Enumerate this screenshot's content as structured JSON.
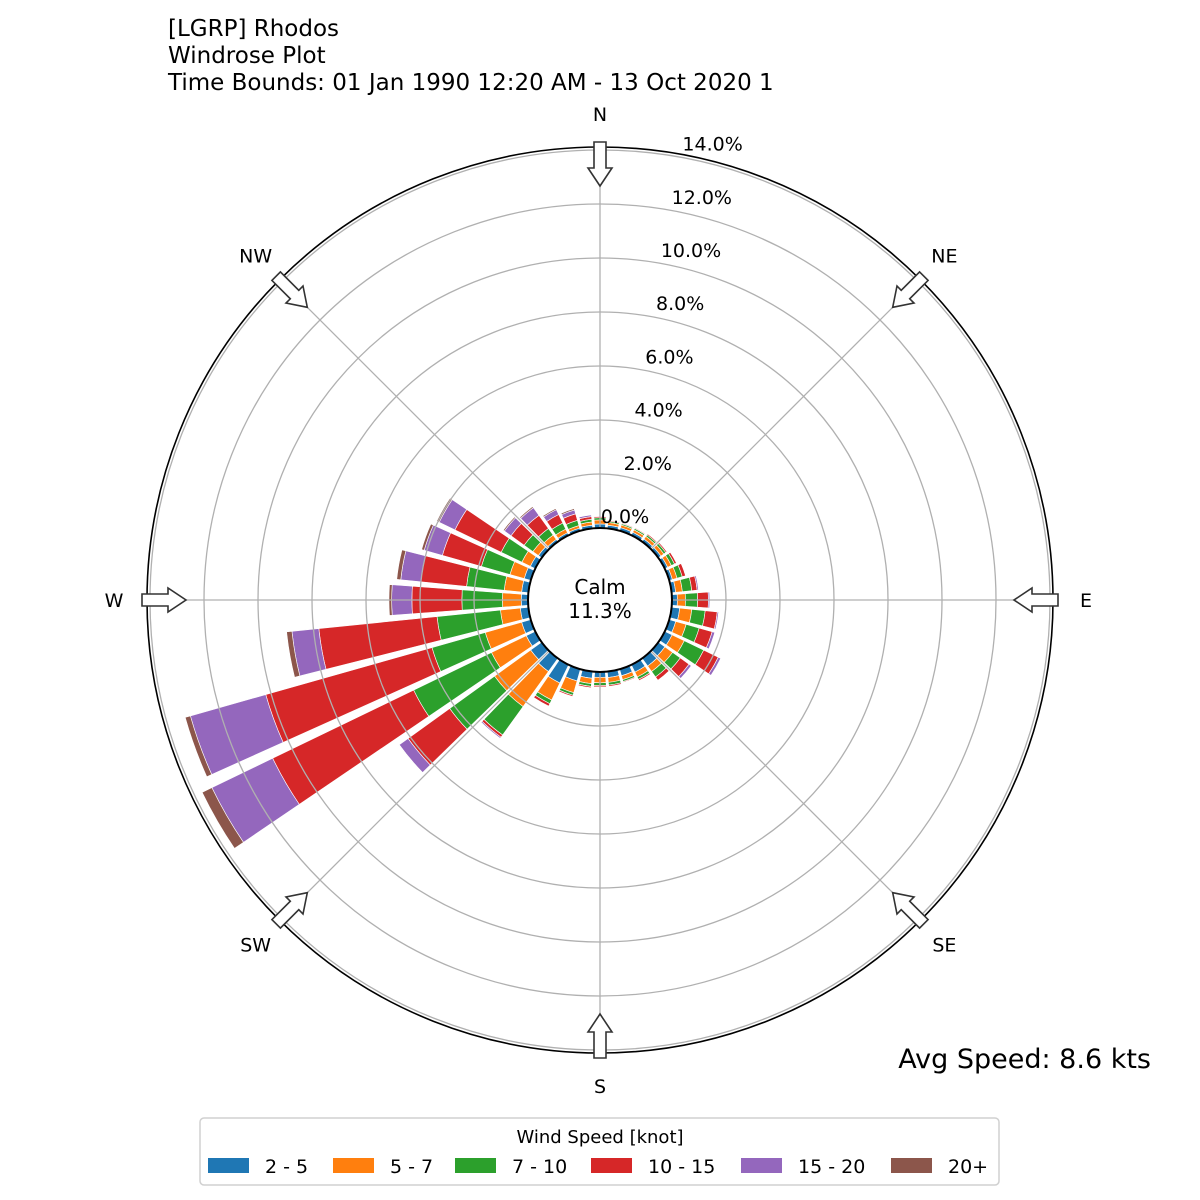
{
  "chart_data": {
    "type": "windrose",
    "title_lines": [
      "[LGRP] Rhodos",
      "Windrose Plot",
      "Time Bounds: 01 Jan 1990 12:20 AM - 13 Oct 2020 1"
    ],
    "directions_deg": [
      0,
      10,
      20,
      30,
      40,
      50,
      60,
      70,
      80,
      90,
      100,
      110,
      120,
      130,
      140,
      150,
      160,
      170,
      180,
      190,
      200,
      210,
      220,
      230,
      240,
      250,
      260,
      270,
      280,
      290,
      300,
      310,
      320,
      330,
      340,
      350
    ],
    "compass_labels": [
      {
        "label": "N",
        "deg": 0
      },
      {
        "label": "NE",
        "deg": 45
      },
      {
        "label": "E",
        "deg": 90
      },
      {
        "label": "SE",
        "deg": 135
      },
      {
        "label": "S",
        "deg": 180
      },
      {
        "label": "SW",
        "deg": 225
      },
      {
        "label": "W",
        "deg": 270
      },
      {
        "label": "NW",
        "deg": 315
      }
    ],
    "radial_ticks": [
      0,
      2,
      4,
      6,
      8,
      10,
      12,
      14
    ],
    "radial_tick_labels": [
      "0.0%",
      "2.0%",
      "4.0%",
      "6.0%",
      "8.0%",
      "10.0%",
      "12.0%",
      "14.0%"
    ],
    "rlim": [
      0,
      14
    ],
    "calm_label": "Calm",
    "calm_value": "11.3%",
    "avg_speed_label": "Avg Speed: 8.6 kts",
    "legend_title": "Wind Speed [knot]",
    "legend_placement": "bottom-center",
    "series": [
      {
        "name": "2 - 5",
        "color": "#1f77b4"
      },
      {
        "name": "5 - 7",
        "color": "#ff7f0e"
      },
      {
        "name": "7 - 10",
        "color": "#2ca02c"
      },
      {
        "name": "10 - 15",
        "color": "#d62728"
      },
      {
        "name": "15 - 20",
        "color": "#9467bd"
      },
      {
        "name": "20+",
        "color": "#8c564b"
      }
    ],
    "values_percent": [
      [
        0.15,
        0.15,
        0.08,
        0.05,
        0.02,
        0
      ],
      [
        0.12,
        0.1,
        0.05,
        0.03,
        0,
        0
      ],
      [
        0.12,
        0.1,
        0.05,
        0.03,
        0,
        0
      ],
      [
        0.12,
        0.1,
        0.06,
        0.03,
        0.01,
        0
      ],
      [
        0.12,
        0.12,
        0.07,
        0.04,
        0,
        0
      ],
      [
        0.12,
        0.13,
        0.09,
        0.05,
        0.01,
        0
      ],
      [
        0.12,
        0.15,
        0.13,
        0.08,
        0.02,
        0
      ],
      [
        0.12,
        0.18,
        0.2,
        0.13,
        0.02,
        0
      ],
      [
        0.15,
        0.25,
        0.35,
        0.2,
        0.05,
        0
      ],
      [
        0.2,
        0.3,
        0.45,
        0.4,
        0.05,
        0
      ],
      [
        0.3,
        0.45,
        0.5,
        0.45,
        0.05,
        0
      ],
      [
        0.25,
        0.4,
        0.5,
        0.5,
        0.1,
        0
      ],
      [
        0.3,
        0.5,
        0.8,
        0.6,
        0.1,
        0
      ],
      [
        0.3,
        0.35,
        0.35,
        0.4,
        0.1,
        0
      ],
      [
        0.35,
        0.25,
        0.25,
        0.15,
        0,
        0
      ],
      [
        0.3,
        0.2,
        0.1,
        0.05,
        0,
        0
      ],
      [
        0.25,
        0.15,
        0.07,
        0.03,
        0,
        0
      ],
      [
        0.22,
        0.18,
        0.1,
        0.05,
        0,
        0
      ],
      [
        0.2,
        0.2,
        0.1,
        0.05,
        0,
        0
      ],
      [
        0.25,
        0.2,
        0.1,
        0.05,
        0,
        0
      ],
      [
        0.45,
        0.45,
        0.1,
        0.05,
        0,
        0
      ],
      [
        0.75,
        0.7,
        0.15,
        0.1,
        0,
        0
      ],
      [
        0.6,
        1.6,
        1.3,
        0.1,
        0.05,
        0
      ],
      [
        0.5,
        1.65,
        2.05,
        1.9,
        0.4,
        0.02
      ],
      [
        0.37,
        1.43,
        3.2,
        5.8,
        2.5,
        0.4
      ],
      [
        0.35,
        1.4,
        2.05,
        6.4,
        2.9,
        0.2
      ],
      [
        0.3,
        0.74,
        2.36,
        4.4,
        1.0,
        0.2
      ],
      [
        0.25,
        0.7,
        1.5,
        1.85,
        0.75,
        0.1
      ],
      [
        0.25,
        0.65,
        1.4,
        1.7,
        0.75,
        0.15
      ],
      [
        0.25,
        0.55,
        1.1,
        1.5,
        0.7,
        0.1
      ],
      [
        0.2,
        0.35,
        0.85,
        1.9,
        0.65,
        0.1
      ],
      [
        0.15,
        0.25,
        0.4,
        0.6,
        0.3,
        0.05
      ],
      [
        0.1,
        0.2,
        0.3,
        0.6,
        0.35,
        0.05
      ],
      [
        0.1,
        0.15,
        0.25,
        0.35,
        0.2,
        0.05
      ],
      [
        0.1,
        0.1,
        0.2,
        0.25,
        0.15,
        0.05
      ],
      [
        0.12,
        0.12,
        0.1,
        0.1,
        0.06,
        0
      ]
    ]
  }
}
